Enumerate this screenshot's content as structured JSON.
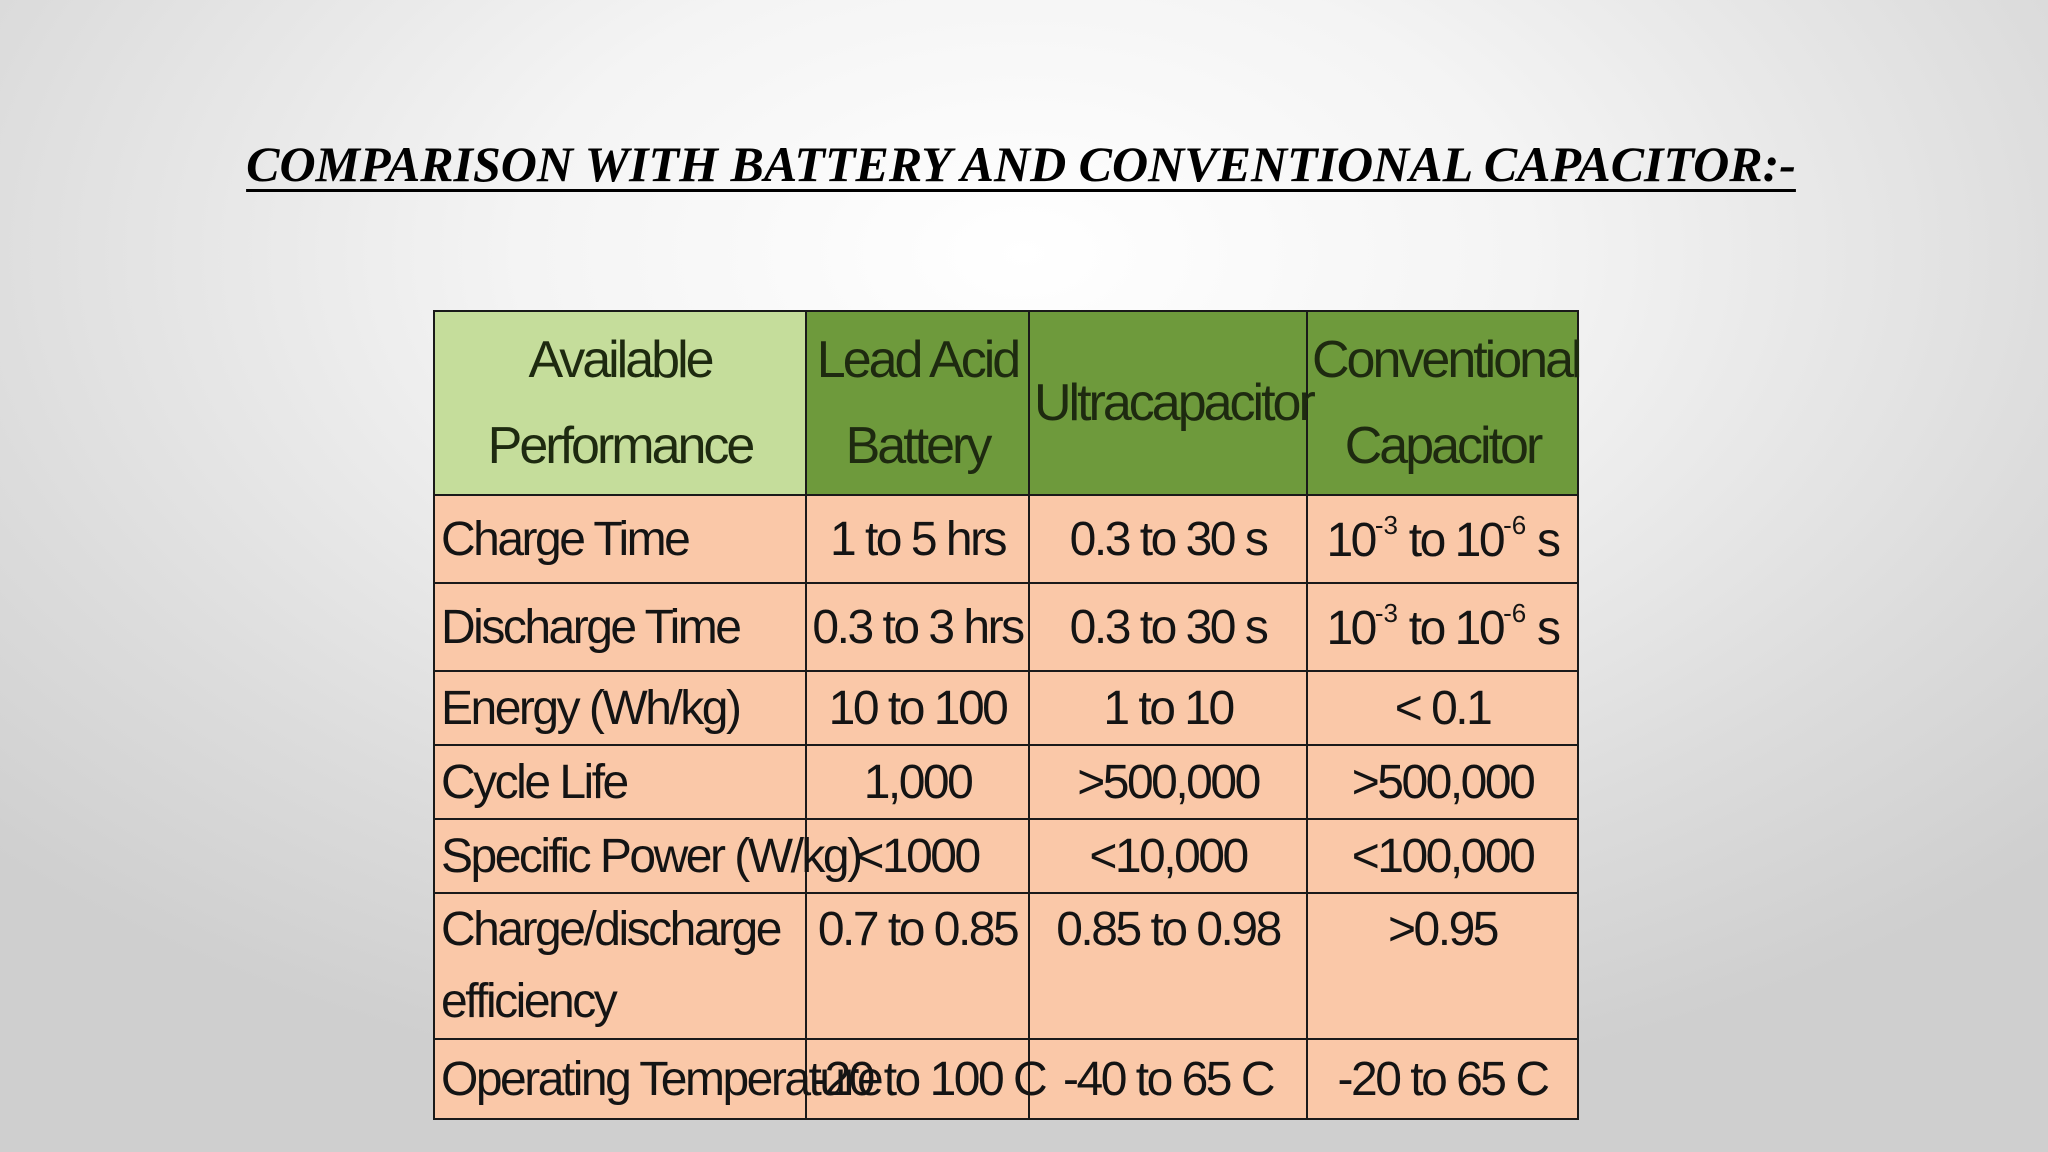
{
  "slide": {
    "title": "COMPARISON WITH BATTERY AND CONVENTIONAL CAPACITOR:-"
  },
  "table": {
    "headers": [
      "Available Performance",
      "Lead Acid Battery",
      "Ultracapacitor",
      "Conventional Capacitor"
    ],
    "rows": [
      {
        "label": "Charge Time",
        "lead_acid": "1 to 5 hrs",
        "ultracapacitor": "0.3 to 30 s",
        "conventional": {
          "base1": "10",
          "exp1": "-3",
          "mid": " to 10",
          "exp2": "-6",
          "unit": " s"
        }
      },
      {
        "label": "Discharge Time",
        "lead_acid": "0.3 to 3 hrs",
        "ultracapacitor": "0.3 to 30 s",
        "conventional": {
          "base1": "10",
          "exp1": "-3",
          "mid": " to 10",
          "exp2": "-6",
          "unit": " s"
        }
      },
      {
        "label": "Energy (Wh/kg)",
        "lead_acid": "10 to 100",
        "ultracapacitor": "1 to 10",
        "conventional": "< 0.1"
      },
      {
        "label": "Cycle Life",
        "lead_acid": "1,000",
        "ultracapacitor": ">500,000",
        "conventional": ">500,000"
      },
      {
        "label": "Specific Power (W/kg)",
        "lead_acid": "<1000",
        "ultracapacitor": "<10,000",
        "conventional": "<100,000"
      },
      {
        "label": "Charge/discharge efficiency",
        "lead_acid": "0.7 to 0.85",
        "ultracapacitor": "0.85 to 0.98",
        "conventional": ">0.95"
      },
      {
        "label": "Operating Temperature",
        "lead_acid": "-20 to 100 C",
        "ultracapacitor": "-40 to 65 C",
        "conventional": "-20 to 65 C"
      }
    ]
  },
  "colors": {
    "header_light_green": "#c5dd9b",
    "header_dark_green": "#6e9a3c",
    "cell_peach": "#fac8a8",
    "border": "#1a1a1a"
  }
}
